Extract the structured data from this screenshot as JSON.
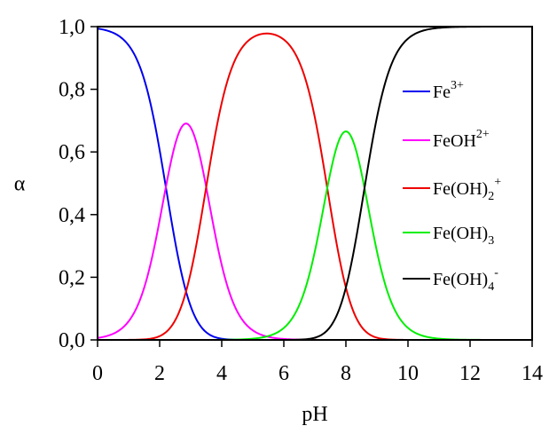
{
  "chart_data": {
    "type": "line",
    "title": "",
    "xlabel": "pH",
    "ylabel": "α",
    "xlim": [
      0,
      14
    ],
    "ylim": [
      0,
      1
    ],
    "xticks": [
      0,
      2,
      4,
      6,
      8,
      10,
      12,
      14
    ],
    "xtick_labels": [
      "0",
      "2",
      "4",
      "6",
      "8",
      "10",
      "12",
      "14"
    ],
    "yticks": [
      0,
      0.2,
      0.4,
      0.6,
      0.8,
      1.0
    ],
    "ytick_labels": [
      "0,0",
      "0,2",
      "0,4",
      "0,6",
      "0,8",
      "1,0"
    ],
    "grid": false,
    "legend_position": "right",
    "pKa": [
      2.2,
      3.5,
      7.4,
      8.6
    ],
    "series": [
      {
        "name": "Fe3+",
        "label_main": "Fe",
        "label_sup": "3+",
        "label_sub": "",
        "label_tail": "",
        "color": "#0000ee"
      },
      {
        "name": "FeOH2+",
        "label_main": "FeOH",
        "label_sup": "2+",
        "label_sub": "",
        "label_tail": "",
        "color": "#ff00ff"
      },
      {
        "name": "Fe(OH)2+",
        "label_main": "Fe(OH)",
        "label_sup": "+",
        "label_sub": "2",
        "label_tail": "",
        "color": "#ee0000"
      },
      {
        "name": "Fe(OH)3",
        "label_main": "Fe(OH)",
        "label_sup": "",
        "label_sub": "3",
        "label_tail": "",
        "color": "#00ee00"
      },
      {
        "name": "Fe(OH)4-",
        "label_main": "Fe(OH)",
        "label_sup": "-",
        "label_sub": "4",
        "label_tail": "",
        "color": "#000000"
      }
    ]
  }
}
